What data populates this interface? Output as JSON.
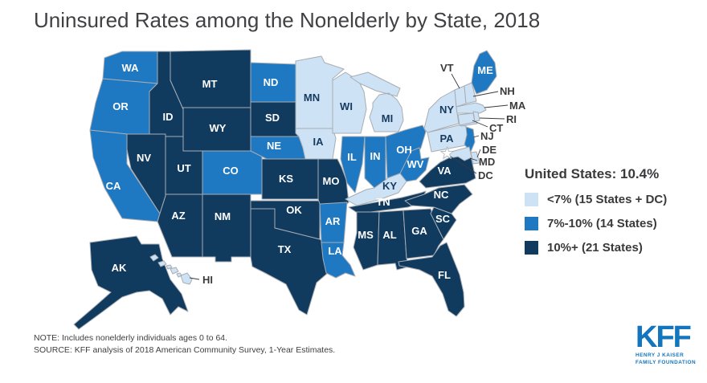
{
  "title": "Uninsured Rates among the Nonelderly by State, 2018",
  "legend": {
    "us_label": "United States: 10.4%",
    "items": [
      {
        "key": "light",
        "label": "<7% (15 States + DC)",
        "color": "#cde2f5"
      },
      {
        "key": "medium",
        "label": "7%-10% (14 States)",
        "color": "#1e78c2"
      },
      {
        "key": "dark",
        "label": "10%+ (21 States)",
        "color": "#113a5f"
      }
    ]
  },
  "chart_data": {
    "type": "heatmap",
    "subtype": "us-choropleth",
    "title": "Uninsured Rates among the Nonelderly by State, 2018",
    "us_value_label": "United States: 10.4%",
    "categories": [
      {
        "label": "<7% (15 States + DC)",
        "color": "#cde2f5"
      },
      {
        "label": "7%-10% (14 States)",
        "color": "#1e78c2"
      },
      {
        "label": "10%+ (21 States)",
        "color": "#113a5f"
      }
    ],
    "legend_position": "right"
  },
  "map": {
    "border_color": "#a8adb3",
    "label_color_on_light": "#16395e",
    "label_color_on_dark": "#ffffff",
    "callout_text_color": "#3a3a3c",
    "states": [
      {
        "abbr": "WA",
        "category": "medium"
      },
      {
        "abbr": "OR",
        "category": "medium"
      },
      {
        "abbr": "CA",
        "category": "medium"
      },
      {
        "abbr": "ID",
        "category": "dark"
      },
      {
        "abbr": "MT",
        "category": "dark"
      },
      {
        "abbr": "WY",
        "category": "dark"
      },
      {
        "abbr": "NV",
        "category": "dark"
      },
      {
        "abbr": "UT",
        "category": "dark"
      },
      {
        "abbr": "CO",
        "category": "medium"
      },
      {
        "abbr": "AZ",
        "category": "dark"
      },
      {
        "abbr": "NM",
        "category": "dark"
      },
      {
        "abbr": "ND",
        "category": "medium"
      },
      {
        "abbr": "SD",
        "category": "dark"
      },
      {
        "abbr": "NE",
        "category": "medium"
      },
      {
        "abbr": "KS",
        "category": "dark"
      },
      {
        "abbr": "OK",
        "category": "dark"
      },
      {
        "abbr": "TX",
        "category": "dark"
      },
      {
        "abbr": "MN",
        "category": "light"
      },
      {
        "abbr": "IA",
        "category": "light"
      },
      {
        "abbr": "MO",
        "category": "dark"
      },
      {
        "abbr": "AR",
        "category": "medium"
      },
      {
        "abbr": "LA",
        "category": "medium"
      },
      {
        "abbr": "WI",
        "category": "light"
      },
      {
        "abbr": "IL",
        "category": "medium"
      },
      {
        "abbr": "MI",
        "category": "light"
      },
      {
        "abbr": "IN",
        "category": "medium"
      },
      {
        "abbr": "OH",
        "category": "medium"
      },
      {
        "abbr": "KY",
        "category": "light"
      },
      {
        "abbr": "WV",
        "category": "medium"
      },
      {
        "abbr": "TN",
        "category": "dark"
      },
      {
        "abbr": "MS",
        "category": "dark"
      },
      {
        "abbr": "AL",
        "category": "dark"
      },
      {
        "abbr": "GA",
        "category": "dark"
      },
      {
        "abbr": "SC",
        "category": "dark"
      },
      {
        "abbr": "NC",
        "category": "dark"
      },
      {
        "abbr": "VA",
        "category": "dark"
      },
      {
        "abbr": "FL",
        "category": "dark"
      },
      {
        "abbr": "PA",
        "category": "light"
      },
      {
        "abbr": "NY",
        "category": "light"
      },
      {
        "abbr": "NJ",
        "category": "medium"
      },
      {
        "abbr": "DE",
        "category": "light"
      },
      {
        "abbr": "MD",
        "category": "light"
      },
      {
        "abbr": "DC",
        "category": "light"
      },
      {
        "abbr": "VT",
        "category": "light"
      },
      {
        "abbr": "NH",
        "category": "light"
      },
      {
        "abbr": "MA",
        "category": "light"
      },
      {
        "abbr": "RI",
        "category": "light"
      },
      {
        "abbr": "CT",
        "category": "light"
      },
      {
        "abbr": "ME",
        "category": "medium"
      },
      {
        "abbr": "AK",
        "category": "dark"
      },
      {
        "abbr": "HI",
        "category": "light"
      }
    ]
  },
  "note": "NOTE: Includes nonelderly individuals ages 0 to 64.",
  "source": "SOURCE: KFF analysis of 2018 American Community Survey, 1-Year Estimates.",
  "logo": {
    "text": "KFF",
    "line1": "HENRY J KAISER",
    "line2": "FAMILY FOUNDATION"
  }
}
